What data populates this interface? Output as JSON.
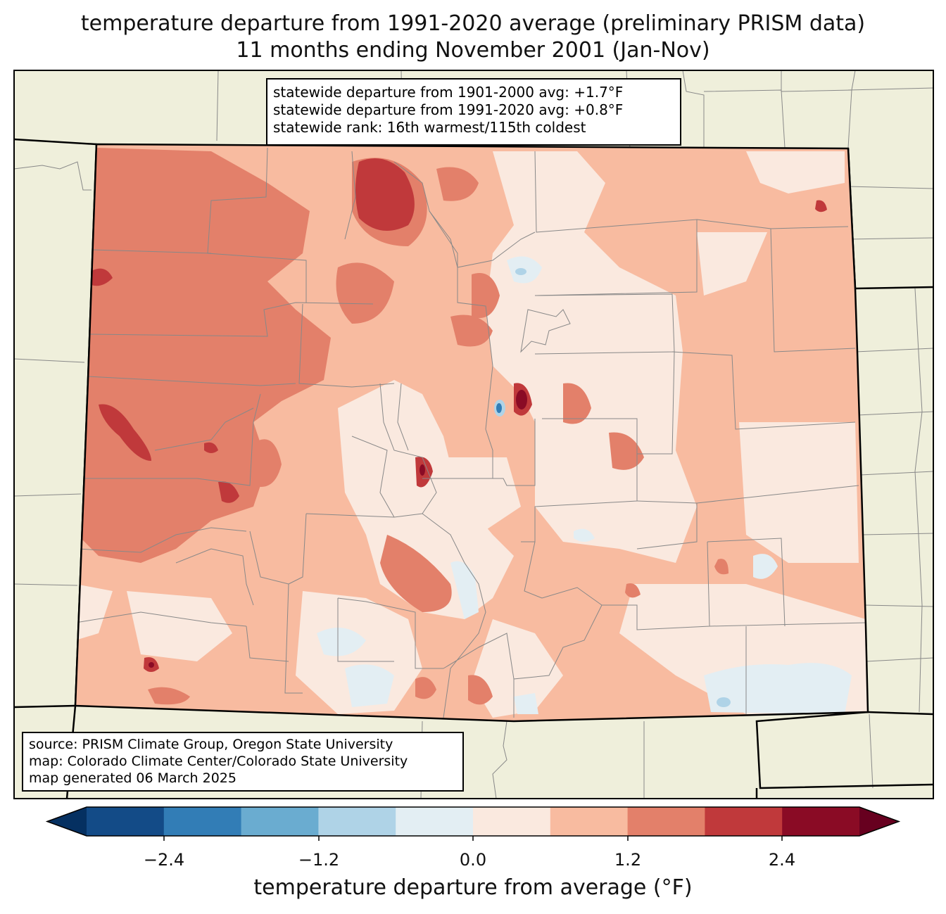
{
  "title": {
    "line1": "temperature departure from 1991-2020 average (preliminary PRISM data)",
    "line2": "11 months ending November 2001 (Jan-Nov)"
  },
  "stats": {
    "line1": "statewide departure from 1901-2000 avg: +1.7°F",
    "line2": "statewide departure from 1991-2020 avg: +0.8°F",
    "line3": "statewide rank: 16th warmest/115th coldest"
  },
  "source": {
    "line1": "source: PRISM Climate Group, Oregon State University",
    "line2": "map: Colorado Climate Center/Colorado State University",
    "line3": "map generated 06 March 2025"
  },
  "colorbar": {
    "label": "temperature departure from average (°F)",
    "ticks": [
      "−2.4",
      "−1.2",
      "0.0",
      "1.2",
      "2.4"
    ],
    "bounds": [
      -3.0,
      -2.4,
      -1.8,
      -1.2,
      -0.6,
      0.0,
      0.6,
      1.2,
      1.8,
      2.4,
      3.0
    ],
    "colors": [
      "#053061",
      "#134b87",
      "#327db6",
      "#6aacd0",
      "#afd3e7",
      "#e3eef3",
      "#fae9df",
      "#f8bba0",
      "#e3806a",
      "#c0393b",
      "#8a0b25",
      "#67001f"
    ]
  },
  "colors": {
    "land": "#efefdb",
    "dominant_fill": "#f8bba0"
  }
}
